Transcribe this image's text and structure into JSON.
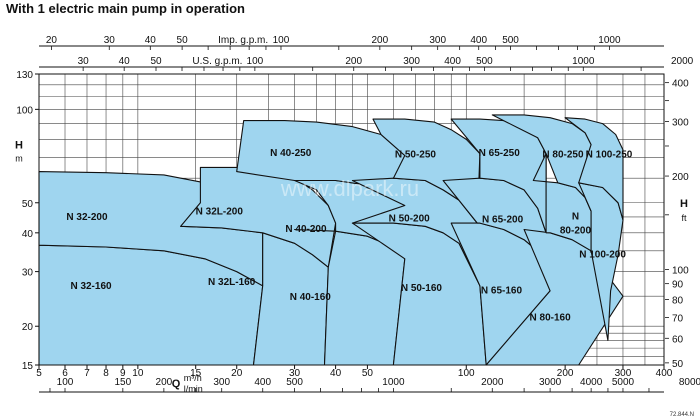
{
  "title": "With 1 electric main pump in operation",
  "footnote": "72.844.N",
  "watermark": "www.dlpark.ru",
  "colors": {
    "fill": "#9fd5ef",
    "stroke": "#111111",
    "grid": "#444444",
    "text": "#111111"
  },
  "chart_data": {
    "type": "area",
    "scale": "log-log",
    "grid": true,
    "axes": {
      "q_m3h": {
        "unit_label": "m³/h",
        "range": [
          5,
          400
        ],
        "ticks": [
          5,
          6,
          7,
          8,
          9,
          10,
          15,
          20,
          30,
          40,
          50,
          100,
          200,
          300,
          400
        ]
      },
      "q_lmin": {
        "unit_label": "l/min",
        "ticks": [
          100,
          150,
          200,
          300,
          400,
          500,
          1000,
          2000,
          3000,
          4000,
          5000,
          8000
        ]
      },
      "q_imp_gpm": {
        "unit_label": "Imp. g.p.m.",
        "ticks": [
          20,
          30,
          40,
          50,
          100,
          200,
          300,
          400,
          500,
          1000
        ]
      },
      "q_us_gpm": {
        "unit_label": "U.S. g.p.m.",
        "ticks": [
          30,
          40,
          50,
          100,
          200,
          300,
          400,
          500,
          1000,
          2000
        ]
      },
      "h_m": {
        "label": "H",
        "unit": "m",
        "range": [
          15,
          130
        ],
        "ticks": [
          15,
          20,
          30,
          40,
          50,
          100,
          130
        ]
      },
      "h_ft": {
        "label": "H",
        "unit": "ft",
        "ticks": [
          50,
          60,
          70,
          80,
          90,
          100,
          200,
          300,
          400
        ]
      },
      "q_prefix": "Q"
    },
    "regions": [
      {
        "name": "N 32-160",
        "polygon": [
          [
            5,
            36.5
          ],
          [
            8,
            36
          ],
          [
            12,
            35
          ],
          [
            16,
            33
          ],
          [
            20,
            30
          ],
          [
            24,
            27
          ],
          [
            22.5,
            15
          ],
          [
            5,
            15
          ]
        ]
      },
      {
        "name": "N 32-200",
        "polygon": [
          [
            5,
            63
          ],
          [
            8,
            62.5
          ],
          [
            12,
            61.5
          ],
          [
            16,
            58
          ],
          [
            20,
            53
          ],
          [
            24,
            45
          ],
          [
            24,
            27
          ],
          [
            20,
            30
          ],
          [
            16,
            33
          ],
          [
            12,
            35
          ],
          [
            8,
            36
          ],
          [
            5,
            36.5
          ]
        ]
      },
      {
        "name": "N 32L-160",
        "polygon": [
          [
            13.5,
            42
          ],
          [
            18,
            41.5
          ],
          [
            24,
            40
          ],
          [
            30,
            37
          ],
          [
            34,
            34
          ],
          [
            38,
            31
          ],
          [
            37,
            15
          ],
          [
            22.5,
            15
          ],
          [
            24,
            27
          ],
          [
            24,
            45
          ],
          [
            20,
            53
          ],
          [
            16,
            58
          ],
          [
            15.5,
            50
          ]
        ]
      },
      {
        "name": "N 32L-200",
        "polygon": [
          [
            15.5,
            65
          ],
          [
            20,
            65
          ],
          [
            25,
            63
          ],
          [
            30,
            60
          ],
          [
            34,
            55
          ],
          [
            38,
            49
          ],
          [
            40,
            43
          ],
          [
            38,
            31
          ],
          [
            34,
            34
          ],
          [
            30,
            37
          ],
          [
            24,
            40
          ],
          [
            18,
            41.5
          ],
          [
            13.5,
            42
          ],
          [
            15.5,
            50
          ]
        ]
      },
      {
        "name": "N 40-160",
        "polygon": [
          [
            30,
            41
          ],
          [
            40,
            40.5
          ],
          [
            50,
            39
          ],
          [
            60,
            36
          ],
          [
            65,
            33
          ],
          [
            60,
            15
          ],
          [
            37,
            15
          ],
          [
            38,
            31
          ],
          [
            40,
            40.5
          ]
        ]
      },
      {
        "name": "N 40-200",
        "polygon": [
          [
            30,
            59
          ],
          [
            40,
            59
          ],
          [
            50,
            57
          ],
          [
            60,
            53
          ],
          [
            65,
            49
          ],
          [
            65,
            33
          ],
          [
            60,
            36
          ],
          [
            50,
            39
          ],
          [
            40,
            40.5
          ],
          [
            40,
            43
          ],
          [
            38,
            49
          ],
          [
            35,
            55
          ]
        ]
      },
      {
        "name": "N 40-250",
        "polygon": [
          [
            21,
            92
          ],
          [
            28,
            92
          ],
          [
            35,
            91
          ],
          [
            45,
            88
          ],
          [
            55,
            83
          ],
          [
            65,
            71
          ],
          [
            65,
            49
          ],
          [
            60,
            53
          ],
          [
            50,
            57
          ],
          [
            40,
            59
          ],
          [
            30,
            59
          ],
          [
            20,
            63
          ]
        ]
      },
      {
        "name": "N 50-160",
        "polygon": [
          [
            45,
            43
          ],
          [
            60,
            43
          ],
          [
            75,
            42
          ],
          [
            85,
            40
          ],
          [
            95,
            37
          ],
          [
            110,
            27
          ],
          [
            115,
            15
          ],
          [
            60,
            15
          ],
          [
            65,
            33
          ]
        ]
      },
      {
        "name": "N 50-200",
        "polygon": [
          [
            45,
            59
          ],
          [
            60,
            60
          ],
          [
            75,
            59
          ],
          [
            85,
            55
          ],
          [
            95,
            51
          ],
          [
            108,
            43
          ],
          [
            110,
            27
          ],
          [
            95,
            37
          ],
          [
            85,
            40
          ],
          [
            75,
            42
          ],
          [
            60,
            43
          ],
          [
            45,
            43
          ],
          [
            65,
            49
          ]
        ]
      },
      {
        "name": "N 50-250",
        "polygon": [
          [
            52,
            93
          ],
          [
            65,
            93
          ],
          [
            80,
            91
          ],
          [
            90,
            86
          ],
          [
            100,
            80
          ],
          [
            110,
            72
          ],
          [
            108,
            43
          ],
          [
            95,
            51
          ],
          [
            85,
            55
          ],
          [
            75,
            59
          ],
          [
            60,
            60
          ],
          [
            65,
            71
          ],
          [
            55,
            83
          ]
        ]
      },
      {
        "name": "N 65-160",
        "polygon": [
          [
            90,
            43
          ],
          [
            110,
            43
          ],
          [
            130,
            41
          ],
          [
            150,
            38
          ],
          [
            170,
            34
          ],
          [
            180,
            26
          ],
          [
            115,
            15
          ],
          [
            110,
            27
          ]
        ]
      },
      {
        "name": "N 65-200",
        "polygon": [
          [
            85,
            59
          ],
          [
            110,
            60
          ],
          [
            130,
            59
          ],
          [
            150,
            55
          ],
          [
            165,
            48
          ],
          [
            175,
            40
          ],
          [
            170,
            34
          ],
          [
            150,
            38
          ],
          [
            130,
            41
          ],
          [
            110,
            43
          ],
          [
            108,
            43
          ]
        ]
      },
      {
        "name": "N 65-250",
        "polygon": [
          [
            90,
            93
          ],
          [
            110,
            93
          ],
          [
            130,
            92
          ],
          [
            150,
            88
          ],
          [
            165,
            81
          ],
          [
            175,
            72
          ],
          [
            175,
            40
          ],
          [
            165,
            48
          ],
          [
            150,
            55
          ],
          [
            130,
            59
          ],
          [
            110,
            60
          ],
          [
            110,
            72
          ]
        ]
      },
      {
        "name": "N 80-160",
        "polygon": [
          [
            150,
            41
          ],
          [
            180,
            40
          ],
          [
            210,
            38
          ],
          [
            240,
            35
          ],
          [
            270,
            29
          ],
          [
            300,
            25
          ],
          [
            220,
            15
          ],
          [
            115,
            15
          ],
          [
            180,
            26
          ]
        ]
      },
      {
        "name": "N 80-200",
        "polygon": [
          [
            160,
            59
          ],
          [
            190,
            58
          ],
          [
            215,
            56
          ],
          [
            230,
            52
          ],
          [
            240,
            47
          ],
          [
            240,
            35
          ],
          [
            210,
            38
          ],
          [
            180,
            40
          ],
          [
            175,
            40
          ],
          [
            175,
            72
          ]
        ]
      },
      {
        "name": "N 80-250",
        "polygon": [
          [
            120,
            96
          ],
          [
            150,
            96
          ],
          [
            180,
            94
          ],
          [
            210,
            90
          ],
          [
            230,
            84
          ],
          [
            240,
            77
          ],
          [
            240,
            47
          ],
          [
            230,
            52
          ],
          [
            215,
            56
          ],
          [
            190,
            58
          ],
          [
            175,
            72
          ],
          [
            165,
            81
          ]
        ]
      },
      {
        "name": "N 100-200",
        "polygon": [
          [
            220,
            58
          ],
          [
            260,
            56
          ],
          [
            290,
            50
          ],
          [
            300,
            44
          ],
          [
            290,
            34
          ],
          [
            275,
            26
          ],
          [
            270,
            18
          ],
          [
            240,
            35
          ],
          [
            240,
            47
          ]
        ]
      },
      {
        "name": "N 100-250",
        "polygon": [
          [
            200,
            94
          ],
          [
            230,
            93
          ],
          [
            260,
            90
          ],
          [
            285,
            83
          ],
          [
            300,
            74
          ],
          [
            300,
            44
          ],
          [
            290,
            50
          ],
          [
            260,
            56
          ],
          [
            220,
            58
          ],
          [
            240,
            77
          ],
          [
            230,
            84
          ]
        ]
      }
    ],
    "labels": [
      {
        "text": "N 32-160",
        "q": 7.2,
        "h": 27.2
      },
      {
        "text": "N 32-200",
        "q": 7.0,
        "h": 45.3
      },
      {
        "text": "N 32L-160",
        "q": 19.3,
        "h": 28.0
      },
      {
        "text": "N 32L-200",
        "q": 17.7,
        "h": 47.2
      },
      {
        "text": "N 40-160",
        "q": 33.5,
        "h": 25.0
      },
      {
        "text": "N 40-200",
        "q": 32.5,
        "h": 41.5
      },
      {
        "text": "N 40-250",
        "q": 29.2,
        "h": 73.0
      },
      {
        "text": "N 50-160",
        "q": 73.0,
        "h": 26.8
      },
      {
        "text": "N 50-200",
        "q": 67.0,
        "h": 44.8
      },
      {
        "text": "N 50-250",
        "q": 70.0,
        "h": 72.0
      },
      {
        "text": "N 65-160",
        "q": 128.0,
        "h": 26.3
      },
      {
        "text": "N 65-200",
        "q": 129.0,
        "h": 44.5
      },
      {
        "text": "N 65-250",
        "q": 126.0,
        "h": 73.0
      },
      {
        "text": "N 80-160",
        "q": 180.0,
        "h": 21.5
      },
      {
        "text": "N",
        "q": 215.0,
        "h": 45.5
      },
      {
        "text": "80-200",
        "q": 215.0,
        "h": 41.0
      },
      {
        "text": "N 80-250",
        "q": 197.0,
        "h": 72.0
      },
      {
        "text": "N 100-200",
        "q": 260.0,
        "h": 34.3
      },
      {
        "text": "N 100-250",
        "q": 272.0,
        "h": 72.0
      }
    ]
  }
}
